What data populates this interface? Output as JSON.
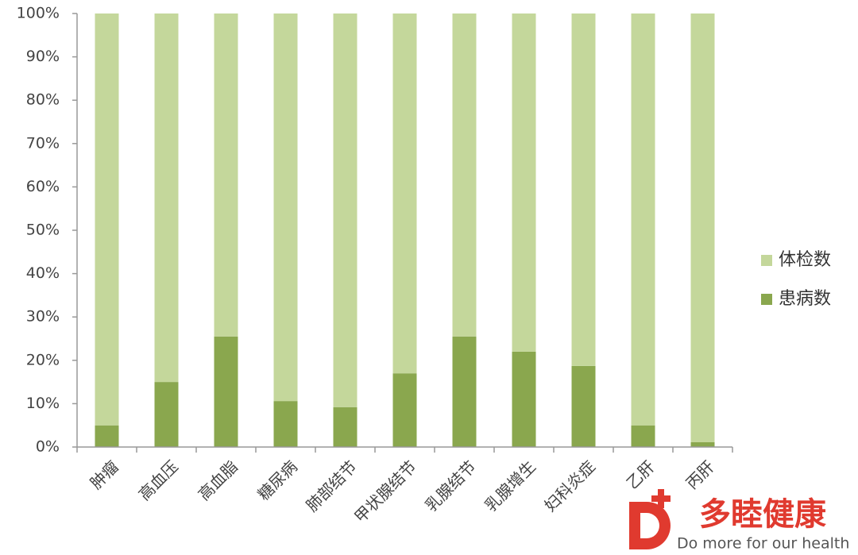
{
  "chart_data": {
    "type": "stacked_bar",
    "categories": [
      "肿瘤",
      "高血压",
      "高血脂",
      "糖尿病",
      "肺部结节",
      "甲状腺结节",
      "乳腺结节",
      "乳腺增生",
      "妇科炎症",
      "乙肝",
      "丙肝"
    ],
    "series": [
      {
        "name": "患病数",
        "color": "#8aa74e",
        "values": [
          5,
          15,
          25.5,
          10.6,
          9.2,
          17,
          25.5,
          22,
          18.7,
          5,
          1.1
        ]
      },
      {
        "name": "体检数",
        "color": "#c4d79b",
        "values": [
          95,
          85,
          74.5,
          89.4,
          90.8,
          83,
          74.5,
          78,
          81.3,
          95,
          98.9
        ]
      }
    ],
    "ylim": [
      0,
      100
    ],
    "yticks": [
      {
        "value": 0,
        "label": "0%"
      },
      {
        "value": 10,
        "label": "10%"
      },
      {
        "value": 20,
        "label": "20%"
      },
      {
        "value": 30,
        "label": "30%"
      },
      {
        "value": 40,
        "label": "40%"
      },
      {
        "value": 50,
        "label": "50%"
      },
      {
        "value": 60,
        "label": "60%"
      },
      {
        "value": 70,
        "label": "70%"
      },
      {
        "value": 80,
        "label": "80%"
      },
      {
        "value": 90,
        "label": "90%"
      },
      {
        "value": 100,
        "label": "100%"
      }
    ],
    "grid": false,
    "legend": "right"
  },
  "logo": {
    "name": "多睦健康",
    "slogan": "Do more for our health"
  }
}
